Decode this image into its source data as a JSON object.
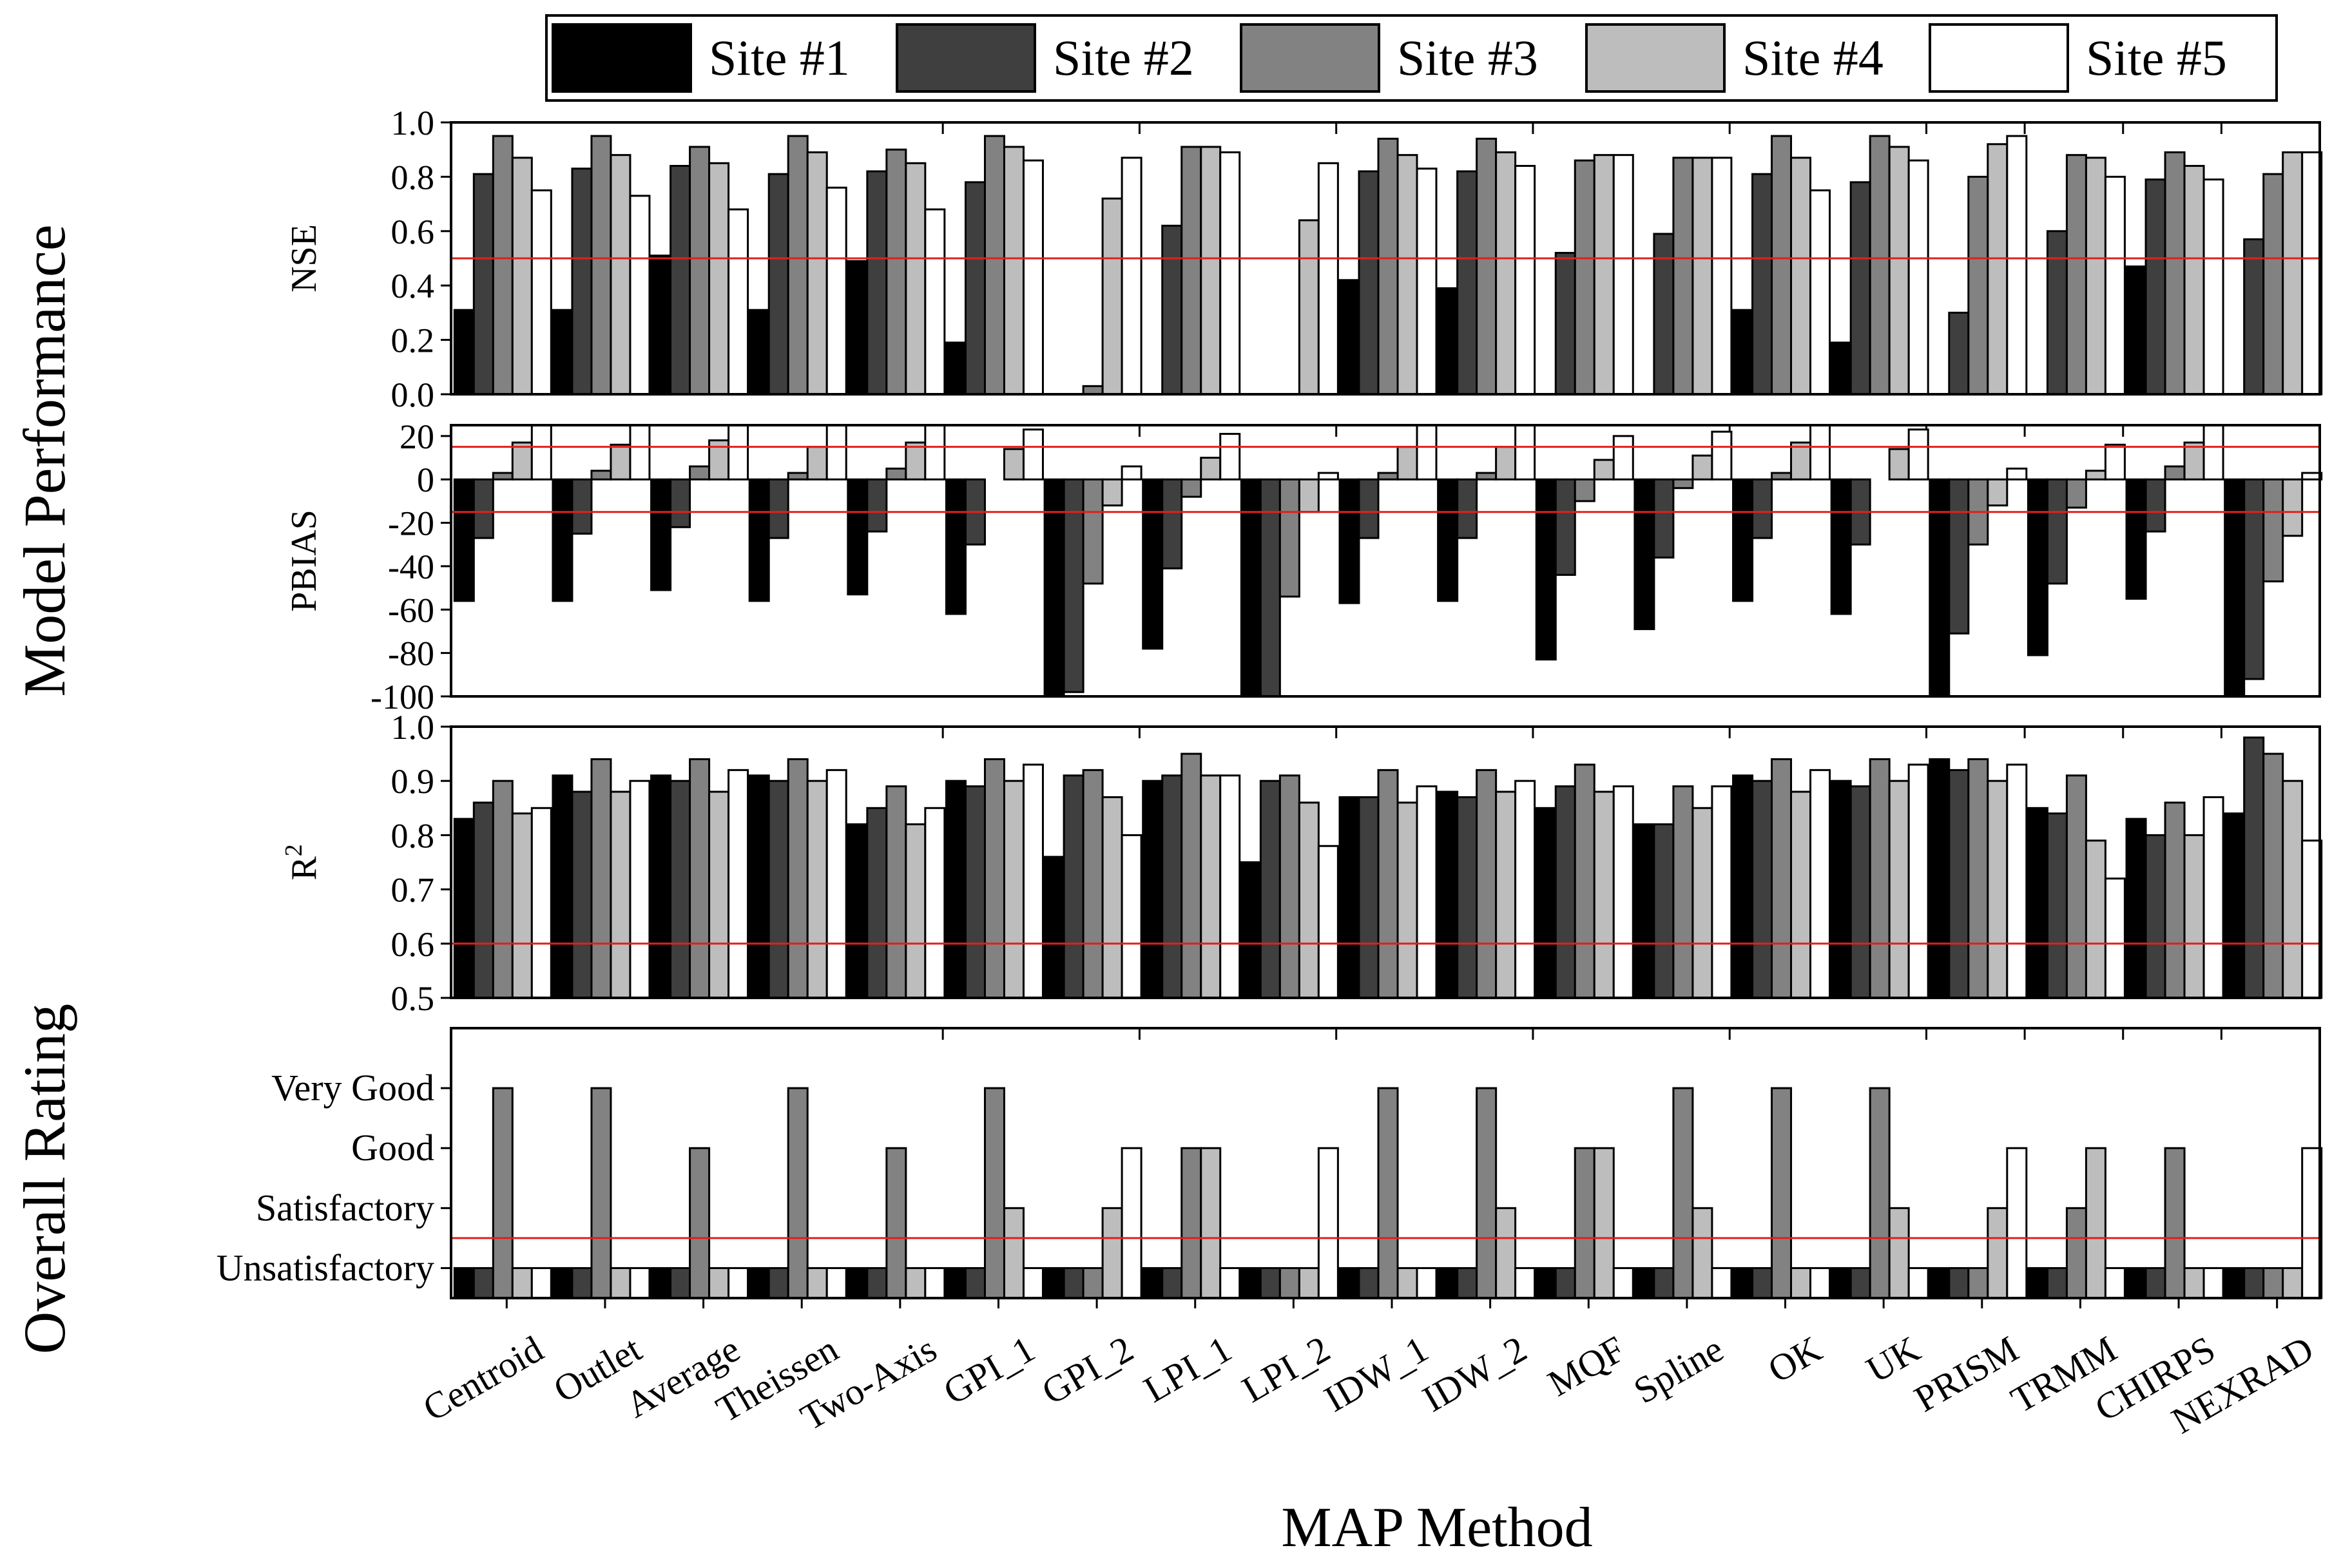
{
  "chart_data": {
    "type": "bar",
    "categories": [
      "Centroid",
      "Outlet",
      "Average",
      "Theissen",
      "Two-Axis",
      "GPI_1",
      "GPI_2",
      "LPI_1",
      "LPI_2",
      "IDW_1",
      "IDW_2",
      "MQF",
      "Spline",
      "OK",
      "UK",
      "PRISM",
      "TRMM",
      "CHIRPS",
      "NEXRAD"
    ],
    "xlabel": "MAP Method",
    "legend": {
      "position": "top",
      "entries": [
        {
          "name": "Site #1",
          "color": "#000000"
        },
        {
          "name": "Site #2",
          "color": "#3f3f3f"
        },
        {
          "name": "Site #3",
          "color": "#828282"
        },
        {
          "name": "Site #4",
          "color": "#bdbdbd"
        },
        {
          "name": "Site #5",
          "color": "#ffffff"
        }
      ]
    },
    "group_labels": [
      {
        "text": "Model Performance"
      },
      {
        "text": "Overall Rating"
      }
    ],
    "reference_line_color": "#e0201b",
    "panels": [
      {
        "id": "nse",
        "ylabel": "NSE",
        "ylim": [
          0,
          1
        ],
        "yticks": [
          0,
          0.2,
          0.4,
          0.6,
          0.8,
          1
        ],
        "tick_labels": [
          "0.0",
          "0.2",
          "0.4",
          "0.6",
          "0.8",
          "1.0"
        ],
        "reference_lines": [
          0.5
        ],
        "series": [
          {
            "name": "Site #1",
            "values": [
              0.31,
              0.31,
              0.51,
              0.31,
              0.49,
              0.19,
              0,
              0,
              0,
              0.42,
              0.39,
              0,
              0,
              0.31,
              0.19,
              0,
              0,
              0.47,
              0
            ]
          },
          {
            "name": "Site #2",
            "values": [
              0.81,
              0.83,
              0.84,
              0.81,
              0.82,
              0.78,
              0,
              0.62,
              0,
              0.82,
              0.82,
              0.52,
              0.59,
              0.81,
              0.78,
              0.3,
              0.6,
              0.79,
              0.57
            ]
          },
          {
            "name": "Site #3",
            "values": [
              0.95,
              0.95,
              0.91,
              0.95,
              0.9,
              0.95,
              0.03,
              0.91,
              0,
              0.94,
              0.94,
              0.86,
              0.87,
              0.95,
              0.95,
              0.8,
              0.88,
              0.89,
              0.81
            ]
          },
          {
            "name": "Site #4",
            "values": [
              0.87,
              0.88,
              0.85,
              0.89,
              0.85,
              0.91,
              0.72,
              0.91,
              0.64,
              0.88,
              0.89,
              0.88,
              0.87,
              0.87,
              0.91,
              0.92,
              0.87,
              0.84,
              0.89
            ]
          },
          {
            "name": "Site #5",
            "values": [
              0.75,
              0.73,
              0.68,
              0.76,
              0.68,
              0.86,
              0.87,
              0.89,
              0.85,
              0.83,
              0.84,
              0.88,
              0.87,
              0.75,
              0.86,
              0.95,
              0.8,
              0.79,
              0.89
            ]
          }
        ]
      },
      {
        "id": "pbias",
        "ylabel": "PBIAS",
        "ylim": [
          -100,
          25
        ],
        "yticks": [
          -100,
          -80,
          -60,
          -40,
          -20,
          0,
          20
        ],
        "tick_labels": [
          "-100",
          "-80",
          "-60",
          "-40",
          "-20",
          "0",
          "20"
        ],
        "reference_lines": [
          15,
          -15
        ],
        "series": [
          {
            "name": "Site #1",
            "values": [
              -56,
              -56,
              -51,
              -56,
              -53,
              -62,
              -100,
              -78,
              -100,
              -57,
              -56,
              -83,
              -69,
              -56,
              -62,
              -100,
              -81,
              -55,
              -100
            ]
          },
          {
            "name": "Site #2",
            "values": [
              -27,
              -25,
              -22,
              -27,
              -24,
              -30,
              -98,
              -41,
              -100,
              -27,
              -27,
              -44,
              -36,
              -27,
              -30,
              -71,
              -48,
              -24,
              -92
            ]
          },
          {
            "name": "Site #3",
            "values": [
              3,
              4,
              6,
              3,
              5,
              0,
              -48,
              -8,
              -54,
              3,
              3,
              -10,
              -4,
              3,
              0,
              -30,
              -13,
              6,
              -47
            ]
          },
          {
            "name": "Site #4",
            "values": [
              17,
              16,
              18,
              15,
              17,
              14,
              -12,
              10,
              -15,
              15,
              15,
              9,
              11,
              17,
              14,
              -12,
              4,
              17,
              -26
            ]
          },
          {
            "name": "Site #5",
            "values": [
              25,
              25,
              25,
              25,
              25,
              23,
              6,
              21,
              3,
              25,
              25,
              20,
              22,
              25,
              23,
              5,
              16,
              25,
              3
            ]
          }
        ]
      },
      {
        "id": "r2",
        "ylabel": "R",
        "ylabel_sup": "2",
        "ylim": [
          0.5,
          1
        ],
        "yticks": [
          0.5,
          0.6,
          0.7,
          0.8,
          0.9,
          1
        ],
        "tick_labels": [
          "0.5",
          "0.6",
          "0.7",
          "0.8",
          "0.9",
          "1.0"
        ],
        "reference_lines": [
          0.6
        ],
        "series": [
          {
            "name": "Site #1",
            "values": [
              0.83,
              0.91,
              0.91,
              0.91,
              0.82,
              0.9,
              0.76,
              0.9,
              0.75,
              0.87,
              0.88,
              0.85,
              0.82,
              0.91,
              0.9,
              0.94,
              0.85,
              0.83,
              0.84
            ]
          },
          {
            "name": "Site #2",
            "values": [
              0.86,
              0.88,
              0.9,
              0.9,
              0.85,
              0.89,
              0.91,
              0.91,
              0.9,
              0.87,
              0.87,
              0.89,
              0.82,
              0.9,
              0.89,
              0.92,
              0.84,
              0.8,
              0.98
            ]
          },
          {
            "name": "Site #3",
            "values": [
              0.9,
              0.94,
              0.94,
              0.94,
              0.89,
              0.94,
              0.92,
              0.95,
              0.91,
              0.92,
              0.92,
              0.93,
              0.89,
              0.94,
              0.94,
              0.94,
              0.91,
              0.86,
              0.95
            ]
          },
          {
            "name": "Site #4",
            "values": [
              0.84,
              0.88,
              0.88,
              0.9,
              0.82,
              0.9,
              0.87,
              0.91,
              0.86,
              0.86,
              0.88,
              0.88,
              0.85,
              0.88,
              0.9,
              0.9,
              0.79,
              0.8,
              0.9
            ]
          },
          {
            "name": "Site #5",
            "values": [
              0.85,
              0.9,
              0.92,
              0.92,
              0.85,
              0.93,
              0.8,
              0.91,
              0.78,
              0.89,
              0.9,
              0.89,
              0.89,
              0.92,
              0.93,
              0.93,
              0.72,
              0.87,
              0.79
            ]
          }
        ]
      },
      {
        "id": "rating",
        "ylabel": "",
        "ylim": [
          0.5,
          5
        ],
        "yticks": [
          1,
          2,
          3,
          4
        ],
        "tick_labels": [
          "Unsatisfactory",
          "Satisfactory",
          "Good",
          "Very Good"
        ],
        "reference_lines": [
          1.5
        ],
        "series": [
          {
            "name": "Site #1",
            "values": [
              1,
              1,
              1,
              1,
              1,
              1,
              1,
              1,
              1,
              1,
              1,
              1,
              1,
              1,
              1,
              1,
              1,
              1,
              1
            ]
          },
          {
            "name": "Site #2",
            "values": [
              1,
              1,
              1,
              1,
              1,
              1,
              1,
              1,
              1,
              1,
              1,
              1,
              1,
              1,
              1,
              1,
              1,
              1,
              1
            ]
          },
          {
            "name": "Site #3",
            "values": [
              4,
              4,
              3,
              4,
              3,
              4,
              1,
              3,
              1,
              4,
              4,
              3,
              4,
              4,
              4,
              1,
              2,
              3,
              1
            ]
          },
          {
            "name": "Site #4",
            "values": [
              1,
              1,
              1,
              1,
              1,
              2,
              2,
              3,
              1,
              1,
              2,
              3,
              2,
              1,
              2,
              2,
              3,
              1,
              1
            ]
          },
          {
            "name": "Site #5",
            "values": [
              1,
              1,
              1,
              1,
              1,
              1,
              3,
              1,
              3,
              1,
              1,
              1,
              1,
              1,
              1,
              3,
              1,
              1,
              3
            ]
          }
        ]
      }
    ]
  }
}
